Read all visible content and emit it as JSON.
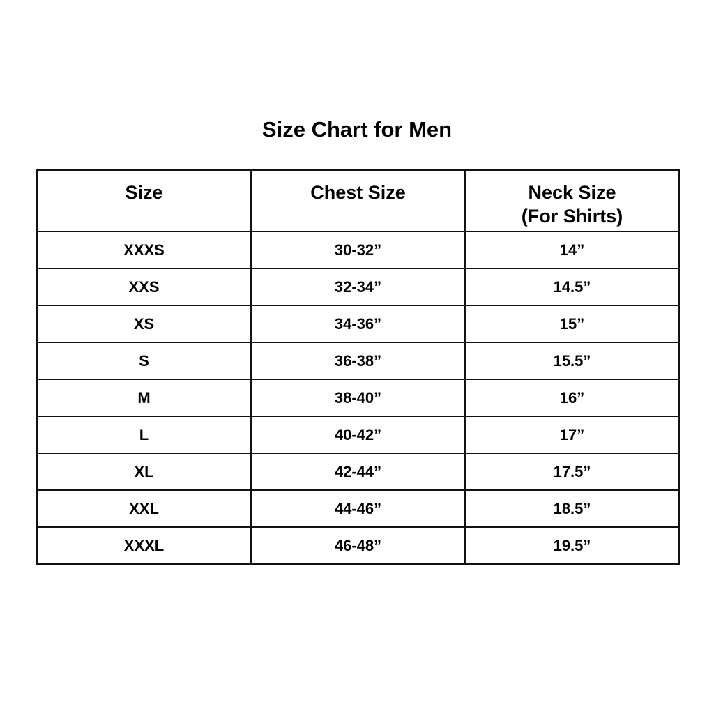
{
  "title": "Size Chart for Men",
  "headers": [
    "Size",
    "Chest Size",
    "Neck Size",
    "(For Shirts)"
  ],
  "rows": [
    [
      "XXXS",
      "30-32”",
      "14”"
    ],
    [
      "XXS",
      "32-34”",
      "14.5”"
    ],
    [
      "XS",
      "34-36”",
      "15”"
    ],
    [
      "S",
      "36-38”",
      "15.5”"
    ],
    [
      "M",
      "38-40”",
      "16”"
    ],
    [
      "L",
      "40-42”",
      "17”"
    ],
    [
      "XL",
      "42-44”",
      "17.5”"
    ],
    [
      "XXL",
      "44-46”",
      "18.5”"
    ],
    [
      "XXXL",
      "46-48”",
      "19.5”"
    ]
  ]
}
